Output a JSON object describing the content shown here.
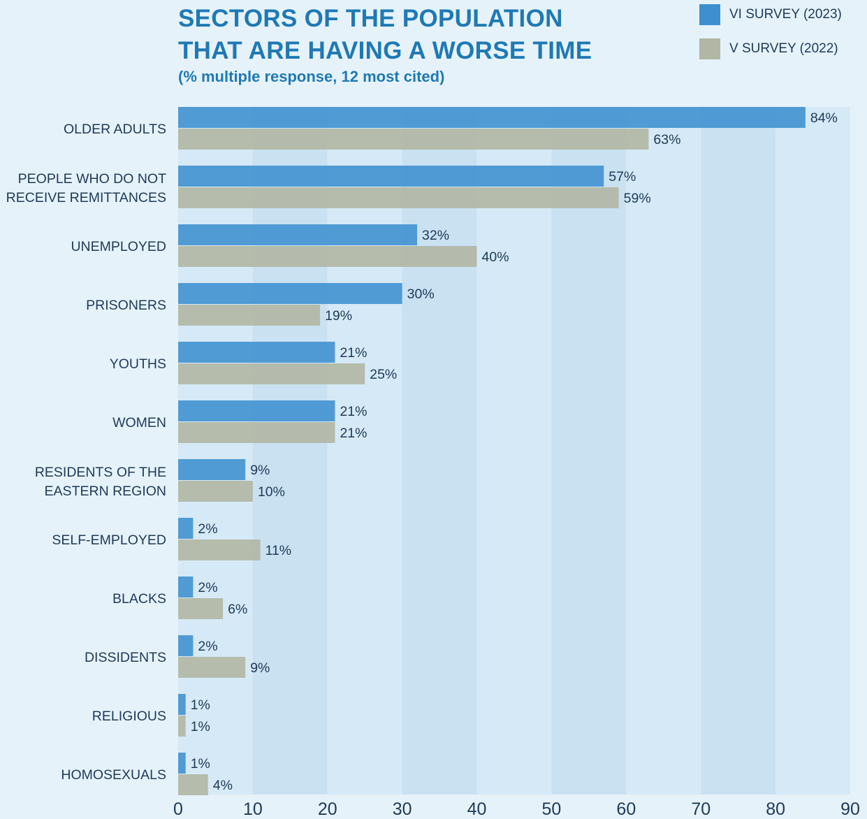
{
  "chart_data": {
    "type": "bar",
    "orientation": "horizontal",
    "title_lines": [
      "SECTORS OF THE POPULATION",
      "THAT ARE HAVING A WORSE TIME"
    ],
    "subtitle": "(% multiple response, 12 most cited)",
    "categories": [
      [
        "OLDER ADULTS"
      ],
      [
        "PEOPLE WHO DO NOT",
        "RECEIVE REMITTANCES"
      ],
      [
        "UNEMPLOYED"
      ],
      [
        "PRISONERS"
      ],
      [
        "YOUTHS"
      ],
      [
        "WOMEN"
      ],
      [
        "RESIDENTS OF THE",
        "EASTERN REGION"
      ],
      [
        "SELF-EMPLOYED"
      ],
      [
        "BLACKS"
      ],
      [
        "DISSIDENTS"
      ],
      [
        "RELIGIOUS"
      ],
      [
        "HOMOSEXUALS"
      ]
    ],
    "series": [
      {
        "name": "VI SURVEY (2023)",
        "color": "#3d8fcf",
        "values": [
          84,
          57,
          32,
          30,
          21,
          21,
          9,
          2,
          2,
          2,
          1,
          1
        ]
      },
      {
        "name": "V SURVEY (2022)",
        "color": "#b1b7a4",
        "values": [
          63,
          59,
          40,
          19,
          25,
          21,
          10,
          11,
          6,
          9,
          1,
          4
        ]
      }
    ],
    "value_suffix": "%",
    "xlim": [
      0,
      90
    ],
    "xticks": [
      0,
      10,
      20,
      30,
      40,
      50,
      60,
      70,
      80,
      90
    ],
    "grid": "alternating vertical bands",
    "band_colors": [
      "#d6e9f6",
      "#c9e1f1"
    ],
    "legend_position": "top-right"
  }
}
